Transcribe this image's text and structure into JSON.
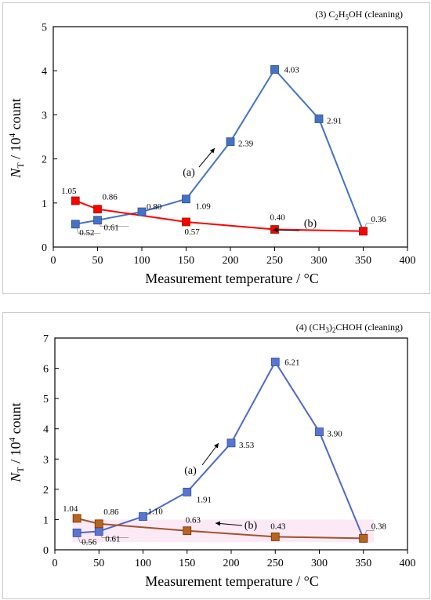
{
  "chart_data": [
    {
      "type": "line",
      "title_prefix": "(3) C",
      "title_sub1": "2",
      "title_mid": "H",
      "title_sub2": "5",
      "title_suffix": "OH (cleaning)",
      "xlabel": "Measurement temperature / °C",
      "ylabel_N": "N",
      "ylabel_sub": "T",
      "ylabel_mid": " / 10",
      "ylabel_sup": "4",
      "ylabel_tail": " count",
      "xlim": [
        0,
        400
      ],
      "ylim": [
        0,
        5
      ],
      "xticks": [
        "0",
        "50",
        "100",
        "150",
        "200",
        "250",
        "300",
        "350",
        "400"
      ],
      "yticks": [
        "0",
        "1",
        "2",
        "3",
        "4",
        "5"
      ],
      "series": [
        {
          "id": "a",
          "color": "#4472C4",
          "marker_fill": "#4472C4",
          "x": [
            25,
            50,
            100,
            150,
            200,
            250,
            300,
            350
          ],
          "y": [
            0.52,
            0.61,
            0.8,
            1.09,
            2.39,
            4.03,
            2.91,
            0.36
          ],
          "labels": [
            "0.52",
            "0.61",
            "0.80",
            "1.09",
            "2.39",
            "4.03",
            "2.91",
            ""
          ]
        },
        {
          "id": "b",
          "color": "#FF0000",
          "marker_fill": "#FF0000",
          "x": [
            25,
            50,
            150,
            250,
            350
          ],
          "y": [
            1.05,
            0.86,
            0.57,
            0.4,
            0.36
          ],
          "labels": [
            "1.05",
            "0.86",
            "0.57",
            "0.40",
            "0.36"
          ]
        }
      ],
      "annotations": [
        {
          "text": "(a)"
        },
        {
          "text": "(b)"
        }
      ]
    },
    {
      "type": "line",
      "title_prefix": "(4) (CH",
      "title_sub1": "3",
      "title_mid": ")",
      "title_sub2": "2",
      "title_suffix": "CHOH (cleaning)",
      "xlabel": "Measurement temperature / °C",
      "ylabel_N": "N",
      "ylabel_sub": "T",
      "ylabel_mid": " / 10",
      "ylabel_sup": "4",
      "ylabel_tail": " count",
      "xlim": [
        0,
        400
      ],
      "ylim": [
        0,
        7
      ],
      "xticks": [
        "0",
        "50",
        "100",
        "150",
        "200",
        "250",
        "300",
        "350",
        "400"
      ],
      "yticks": [
        "0",
        "1",
        "2",
        "3",
        "4",
        "5",
        "6",
        "7"
      ],
      "series": [
        {
          "id": "a",
          "color": "#4F68C8",
          "marker_fill": "#5A74D6",
          "x": [
            25,
            50,
            100,
            150,
            200,
            250,
            300,
            350
          ],
          "y": [
            0.56,
            0.61,
            1.1,
            1.91,
            3.53,
            6.21,
            3.9,
            0.38
          ],
          "labels": [
            "0.56",
            "0.61",
            "1.10",
            "1.91",
            "3.53",
            "6.21",
            "3.90",
            ""
          ]
        },
        {
          "id": "b",
          "color": "#A0522D",
          "marker_fill": "#B5651D",
          "x": [
            25,
            50,
            150,
            250,
            350
          ],
          "y": [
            1.04,
            0.86,
            0.63,
            0.43,
            0.38
          ],
          "labels": [
            "1.04",
            "0.86",
            "0.63",
            "0.43",
            "0.38"
          ]
        }
      ],
      "annotations": [
        {
          "text": "(a)"
        },
        {
          "text": "(b)"
        }
      ]
    }
  ]
}
